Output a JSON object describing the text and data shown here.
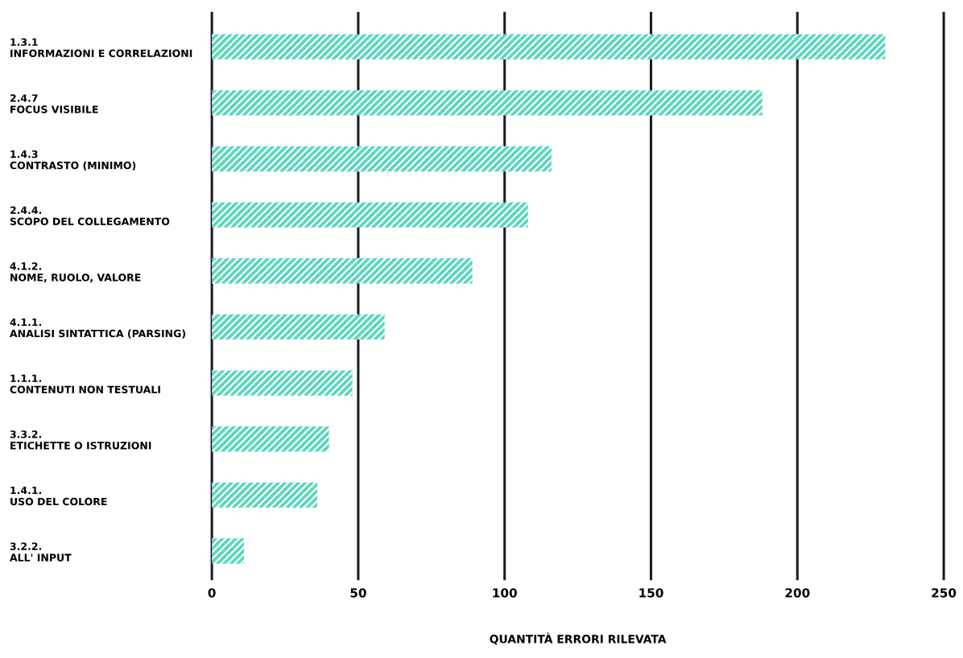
{
  "chart_data": {
    "type": "bar",
    "orientation": "horizontal",
    "categories": [
      "1.3.1\nINFORMAZIONI E CORRELAZIONI",
      "2.4.7\nFOCUS VISIBILE",
      "1.4.3\nCONTRASTO (MINIMO)",
      "2.4.4.\nSCOPO DEL COLLEGAMENTO",
      "4.1.2.\nNOME, RUOLO, VALORE",
      "4.1.1.\nANALISI SINTATTICA (PARSING)",
      "1.1.1.\nCONTENUTI NON TESTUALI",
      "3.3.2.\nETICHETTE O ISTRUZIONI",
      "1.4.1.\nUSO DEL COLORE",
      "3.2.2.\nALL' INPUT"
    ],
    "values": [
      230,
      188,
      116,
      108,
      89,
      59,
      48,
      40,
      36,
      11
    ],
    "color": "#5fd6bd",
    "xlabel": "QUANTITÀ ERRORI RILEVATA",
    "xlim": [
      0,
      250
    ],
    "xticks": [
      0,
      50,
      100,
      150,
      200,
      250
    ],
    "grid": "x"
  }
}
